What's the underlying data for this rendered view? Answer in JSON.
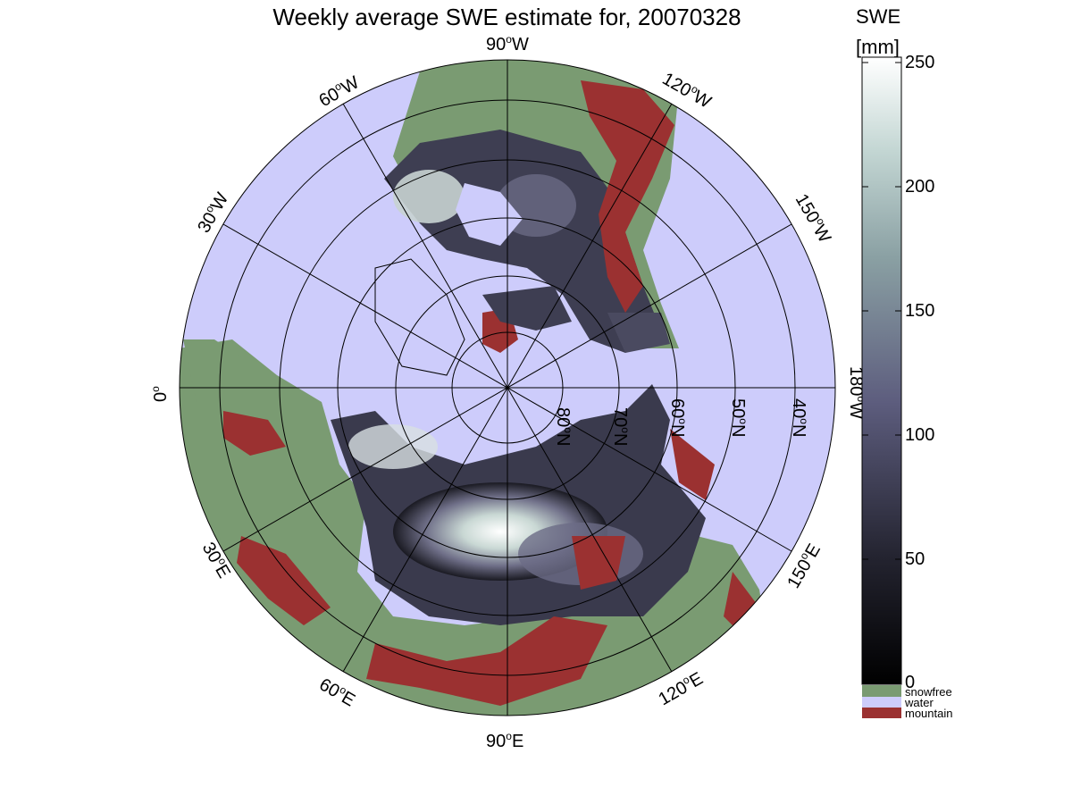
{
  "title": "Weekly average SWE estimate for, 20070328",
  "colorbar": {
    "title": "SWE",
    "unit": "[mm]",
    "ticks": [
      "250",
      "200",
      "150",
      "100",
      "50",
      "0"
    ],
    "tick_values": [
      250,
      200,
      150,
      100,
      50,
      0
    ],
    "range": [
      0,
      250
    ]
  },
  "legend": {
    "snowfree": "snowfree",
    "water": "water",
    "mountain": "mountain"
  },
  "longitude_labels": {
    "w90": "90",
    "w60": "60",
    "w120": "120",
    "w30": "30",
    "w150": "150",
    "zero": "0",
    "w180": "180",
    "e30": "30",
    "e150": "150",
    "e60": "60",
    "e120": "120",
    "e90": "90",
    "unit_w": "W",
    "unit_e": "E",
    "deg": "o"
  },
  "latitude_labels": {
    "n80": "80",
    "n70": "70",
    "n60": "60",
    "n50": "50",
    "n40": "40",
    "unit_n": "N",
    "deg": "o"
  },
  "colors": {
    "snowfree": "#7a9b72",
    "water": "#cdccfb",
    "mountain": "#9b3131",
    "swe_low": "#0d0d12",
    "swe_mid": "#5d5d7d",
    "swe_high": "#ffffff"
  }
}
